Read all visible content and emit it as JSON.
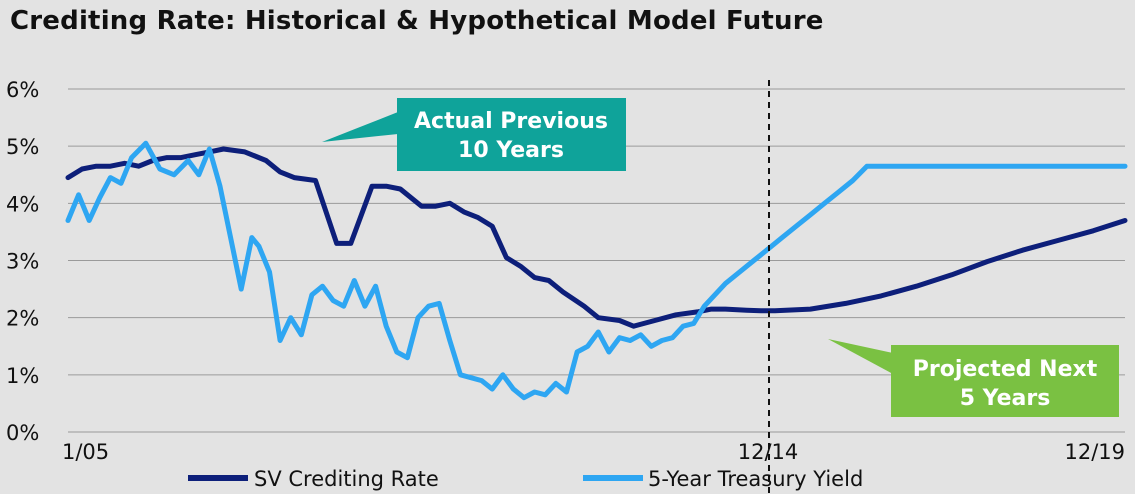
{
  "title": "Crediting Rate: Historical & Hypothetical Model Future",
  "colors": {
    "sv_series": "#0d1f7a",
    "treasury_series": "#2ea6f2",
    "actual_callout": "#0fa39a",
    "projected_callout": "#7ac142",
    "background": "#e3e3e3",
    "grid": "#9a9a9a"
  },
  "chart_data": {
    "type": "line",
    "title": "Crediting Rate: Historical & Hypothetical Model Future",
    "xlabel": "",
    "ylabel": "",
    "x_ticks": [
      "1/05",
      "12/14",
      "12/19"
    ],
    "y_ticks": [
      "0%",
      "1%",
      "2%",
      "3%",
      "4%",
      "5%",
      "6%"
    ],
    "ylim": [
      0,
      6
    ],
    "grid": true,
    "legend_position": "bottom",
    "divider_at": "12/14",
    "series": [
      {
        "name": "SV Crediting Rate",
        "x": [
          2005.0,
          2005.2,
          2005.4,
          2005.6,
          2005.8,
          2006.0,
          2006.2,
          2006.4,
          2006.6,
          2006.8,
          2007.0,
          2007.2,
          2007.5,
          2007.8,
          2008.0,
          2008.2,
          2008.5,
          2008.8,
          2009.0,
          2009.3,
          2009.5,
          2009.7,
          2010.0,
          2010.2,
          2010.4,
          2010.6,
          2010.8,
          2011.0,
          2011.2,
          2011.4,
          2011.6,
          2011.8,
          2012.0,
          2012.3,
          2012.5,
          2012.8,
          2013.0,
          2013.3,
          2013.6,
          2013.9,
          2014.1,
          2014.3,
          2014.6,
          2014.8,
          2015.0,
          2015.5,
          2016.0,
          2016.5,
          2017.0,
          2017.5,
          2018.0,
          2018.5,
          2019.0,
          2019.5,
          2019.95
        ],
        "y": [
          4.45,
          4.6,
          4.65,
          4.65,
          4.7,
          4.65,
          4.75,
          4.8,
          4.8,
          4.85,
          4.9,
          4.95,
          4.9,
          4.75,
          4.55,
          4.45,
          4.4,
          3.3,
          3.3,
          4.3,
          4.3,
          4.25,
          3.95,
          3.95,
          4.0,
          3.85,
          3.75,
          3.6,
          3.05,
          2.9,
          2.7,
          2.65,
          2.45,
          2.2,
          2.0,
          1.95,
          1.85,
          1.95,
          2.05,
          2.1,
          2.15,
          2.15,
          2.13,
          2.12,
          2.12,
          2.15,
          2.25,
          2.38,
          2.55,
          2.75,
          2.98,
          3.18,
          3.35,
          3.52,
          3.7
        ]
      },
      {
        "name": "5-Year Treasury Yield",
        "x": [
          2005.0,
          2005.15,
          2005.3,
          2005.45,
          2005.6,
          2005.75,
          2005.9,
          2006.1,
          2006.3,
          2006.5,
          2006.7,
          2006.85,
          2007.0,
          2007.15,
          2007.3,
          2007.45,
          2007.6,
          2007.7,
          2007.85,
          2008.0,
          2008.15,
          2008.3,
          2008.45,
          2008.6,
          2008.75,
          2008.9,
          2009.05,
          2009.2,
          2009.35,
          2009.5,
          2009.65,
          2009.8,
          2009.95,
          2010.1,
          2010.25,
          2010.4,
          2010.55,
          2010.7,
          2010.85,
          2011.0,
          2011.15,
          2011.3,
          2011.45,
          2011.6,
          2011.75,
          2011.9,
          2012.05,
          2012.2,
          2012.35,
          2012.5,
          2012.65,
          2012.8,
          2012.95,
          2013.1,
          2013.25,
          2013.4,
          2013.55,
          2013.7,
          2013.85,
          2014.0,
          2014.15,
          2014.3,
          2014.5,
          2014.7,
          2014.9,
          2015.1,
          2015.3,
          2015.5,
          2015.7,
          2015.9,
          2016.1,
          2016.3,
          2016.5,
          2016.7,
          2016.9,
          2017.1,
          2017.3,
          2017.5,
          2017.7,
          2017.9,
          2018.1,
          2019.95
        ],
        "y": [
          3.7,
          4.15,
          3.7,
          4.1,
          4.45,
          4.35,
          4.8,
          5.05,
          4.6,
          4.5,
          4.75,
          4.5,
          4.95,
          4.3,
          3.4,
          2.5,
          3.4,
          3.25,
          2.8,
          1.6,
          2.0,
          1.7,
          2.4,
          2.55,
          2.3,
          2.2,
          2.65,
          2.2,
          2.55,
          1.85,
          1.4,
          1.3,
          2.0,
          2.2,
          2.25,
          1.6,
          1.0,
          0.95,
          0.9,
          0.75,
          1.0,
          0.75,
          0.6,
          0.7,
          0.65,
          0.85,
          0.7,
          1.4,
          1.5,
          1.75,
          1.4,
          1.65,
          1.6,
          1.7,
          1.5,
          1.6,
          1.65,
          1.85,
          1.9,
          2.2,
          2.4,
          2.6,
          2.8,
          3.0,
          3.2,
          3.4,
          3.6,
          3.8,
          4.0,
          4.2,
          4.4,
          4.65,
          4.65,
          4.65,
          4.65,
          4.65,
          4.65,
          4.65,
          4.65,
          4.65,
          4.65,
          4.65
        ]
      }
    ],
    "annotations": [
      {
        "text": [
          "Actual Previous",
          "10 Years"
        ]
      },
      {
        "text": [
          "Projected Next",
          "5 Years"
        ]
      }
    ]
  }
}
